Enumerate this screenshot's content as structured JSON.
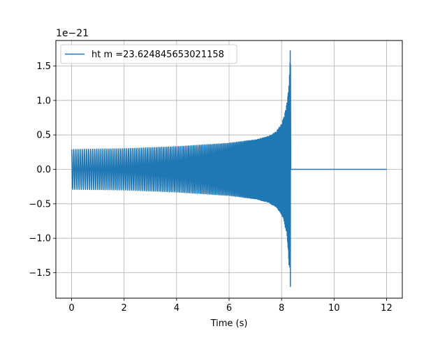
{
  "chart_data": {
    "type": "line",
    "title": "",
    "xlabel": "Time (s)",
    "ylabel": "",
    "offset_label": "1e−21",
    "xlim": [
      -0.6,
      12.6
    ],
    "ylim": [
      -1.87,
      1.87
    ],
    "xticks": [
      0,
      2,
      4,
      6,
      8,
      10,
      12
    ],
    "xtick_labels": [
      "0",
      "2",
      "4",
      "6",
      "8",
      "10",
      "12"
    ],
    "yticks": [
      -1.5,
      -1.0,
      -0.5,
      0.0,
      0.5,
      1.0,
      1.5
    ],
    "ytick_labels": [
      "−1.5",
      "−1.0",
      "−0.5",
      "0.0",
      "0.5",
      "1.0",
      "1.5"
    ],
    "grid": true,
    "legend_position": "top-left",
    "series": [
      {
        "name": "ht m =23.624845653021158",
        "color": "#1f77b4",
        "envelope": {
          "t": [
            0.0,
            2.0,
            4.0,
            6.0,
            7.0,
            7.5,
            7.8,
            8.0,
            8.1,
            8.2,
            8.25,
            8.3,
            8.33,
            8.35,
            12.0
          ],
          "upper": [
            0.29,
            0.3,
            0.33,
            0.38,
            0.43,
            0.48,
            0.55,
            0.66,
            0.77,
            0.95,
            1.1,
            1.5,
            1.72,
            0.0,
            0.0
          ],
          "lower": [
            -0.29,
            -0.3,
            -0.33,
            -0.38,
            -0.43,
            -0.48,
            -0.55,
            -0.66,
            -0.77,
            -0.95,
            -1.15,
            -1.5,
            -1.7,
            0.0,
            0.0
          ]
        },
        "merger_time": 8.33,
        "end_time": 12.0
      }
    ]
  }
}
